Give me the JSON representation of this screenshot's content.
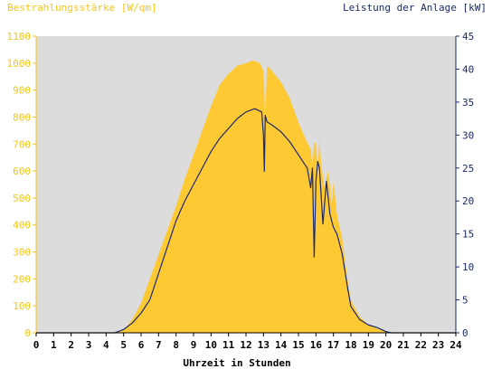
{
  "chart_data": {
    "type": "area",
    "left_axis_title": "Bestrahlungsstärke [W/qm]",
    "right_axis_title": "Leistung der Anlage [kW]",
    "xlabel": "Uhrzeit in Stunden",
    "x_range": [
      0,
      24
    ],
    "x_ticks": [
      0,
      1,
      2,
      3,
      4,
      5,
      6,
      7,
      8,
      9,
      10,
      11,
      12,
      13,
      14,
      15,
      16,
      17,
      18,
      19,
      20,
      21,
      22,
      23,
      24
    ],
    "y_left_range": [
      0,
      1100
    ],
    "y_left_ticks": [
      0,
      100,
      200,
      300,
      400,
      500,
      600,
      700,
      800,
      900,
      1000,
      1100
    ],
    "y_right_range": [
      0,
      45
    ],
    "y_right_ticks": [
      0,
      5,
      10,
      15,
      20,
      25,
      30,
      35,
      40,
      45
    ],
    "grid": false,
    "colors": {
      "irradiance_fill": "#ffc933",
      "power_line": "#1a2a6c",
      "plot_background": "#dcdcdc",
      "left_axis": "#f5c518",
      "right_axis": "#1a2a6c"
    },
    "series": [
      {
        "axis": "left",
        "style": "area",
        "x": [
          0,
          4.5,
          5,
          5.5,
          6,
          6.5,
          7,
          7.5,
          8,
          8.5,
          9,
          9.5,
          10,
          10.5,
          11,
          11.5,
          12,
          12.4,
          12.8,
          13.0,
          13.1,
          13.2,
          13.5,
          14,
          14.5,
          15,
          15.4,
          15.7,
          15.8,
          15.9,
          16,
          16.1,
          16.2,
          16.3,
          16.5,
          16.7,
          16.9,
          17,
          17.2,
          17.5,
          17.8,
          18,
          18.5,
          19,
          19.5,
          20,
          20.3,
          20.5,
          24
        ],
        "values": [
          0,
          0,
          10,
          50,
          110,
          200,
          290,
          380,
          470,
          570,
          660,
          750,
          840,
          920,
          960,
          990,
          1000,
          1010,
          1000,
          970,
          800,
          990,
          970,
          930,
          870,
          780,
          720,
          680,
          620,
          710,
          700,
          600,
          720,
          620,
          540,
          600,
          480,
          560,
          440,
          350,
          200,
          120,
          60,
          30,
          15,
          5,
          0,
          0,
          0
        ]
      },
      {
        "axis": "right",
        "style": "line",
        "x": [
          0,
          4.5,
          5,
          5.5,
          6,
          6.5,
          7,
          7.5,
          8,
          8.5,
          9,
          9.5,
          10,
          10.5,
          11,
          11.5,
          12,
          12.5,
          12.9,
          13.0,
          13.05,
          13.1,
          13.2,
          13.5,
          14,
          14.5,
          15,
          15.5,
          15.7,
          15.8,
          15.9,
          16,
          16.1,
          16.2,
          16.4,
          16.6,
          16.8,
          17,
          17.2,
          17.5,
          17.8,
          18,
          18.5,
          19,
          19.5,
          20,
          20.3,
          24
        ],
        "values": [
          0,
          0,
          0.5,
          1.5,
          3,
          5,
          9,
          13,
          17,
          20,
          22.5,
          25,
          27.5,
          29.5,
          31,
          32.5,
          33.5,
          34,
          33.5,
          30,
          24.5,
          33,
          32,
          31.5,
          30.5,
          29,
          27,
          25,
          22,
          25,
          11.5,
          23,
          26,
          25,
          16.5,
          23,
          18,
          16,
          15,
          12,
          7,
          4,
          2,
          1.2,
          0.8,
          0.2,
          0,
          0
        ]
      }
    ]
  }
}
